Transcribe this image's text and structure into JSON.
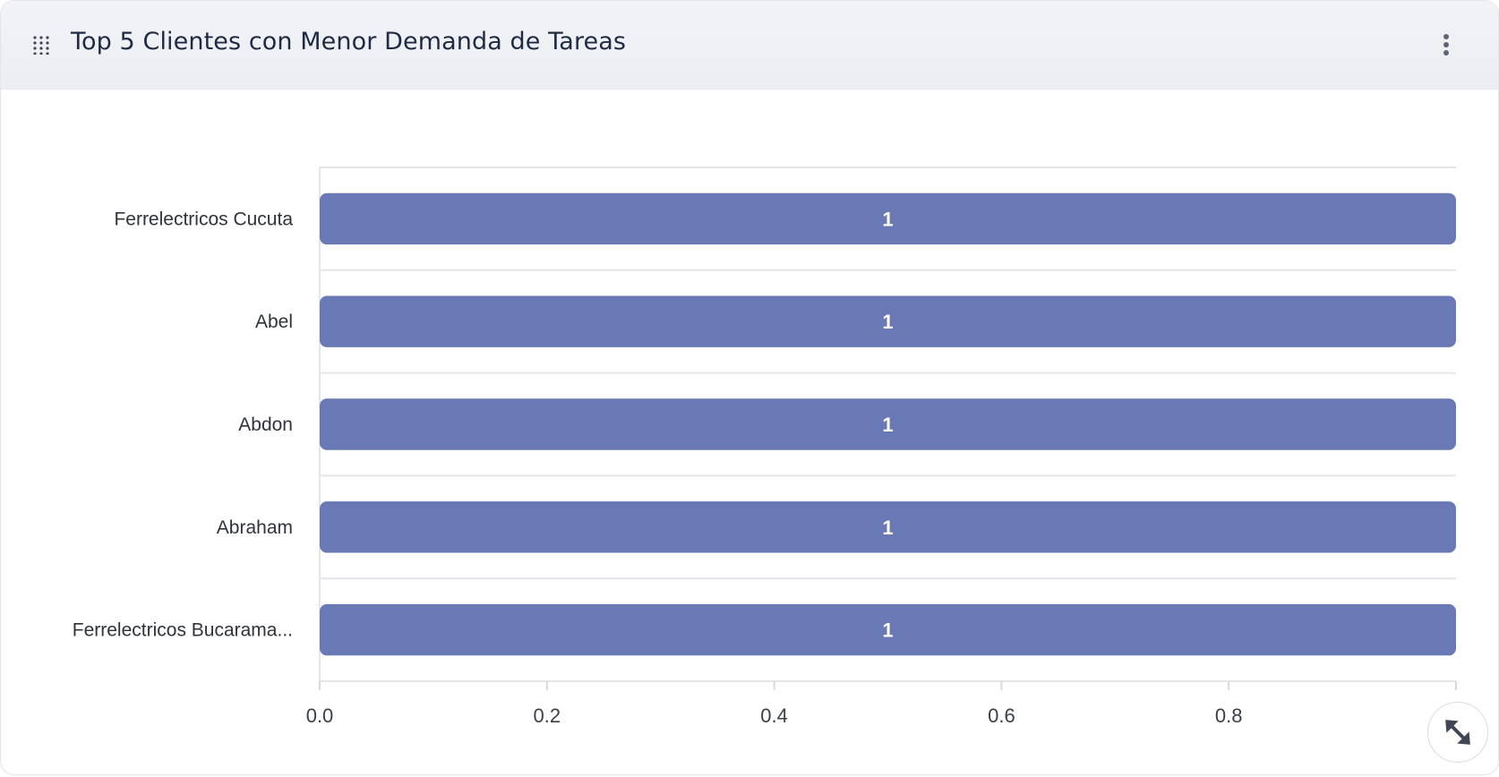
{
  "widget": {
    "title": "Top 5 Clientes con Menor Demanda de Tareas",
    "drag_icon": "grip-icon",
    "menu_icon": "more-vertical-icon",
    "expand_icon": "expand-arrows-icon"
  },
  "chart_data": {
    "type": "bar",
    "orientation": "horizontal",
    "categories": [
      "Ferrelectricos Cucuta",
      "Abel",
      "Abdon",
      "Abraham",
      "Ferrelectricos Bucarama..."
    ],
    "values": [
      1,
      1,
      1,
      1,
      1
    ],
    "x_ticks": [
      "0.0",
      "0.2",
      "0.4",
      "0.6",
      "0.8"
    ],
    "xlim": [
      0,
      1
    ],
    "grid": true,
    "bar_color": "#6979b5"
  }
}
